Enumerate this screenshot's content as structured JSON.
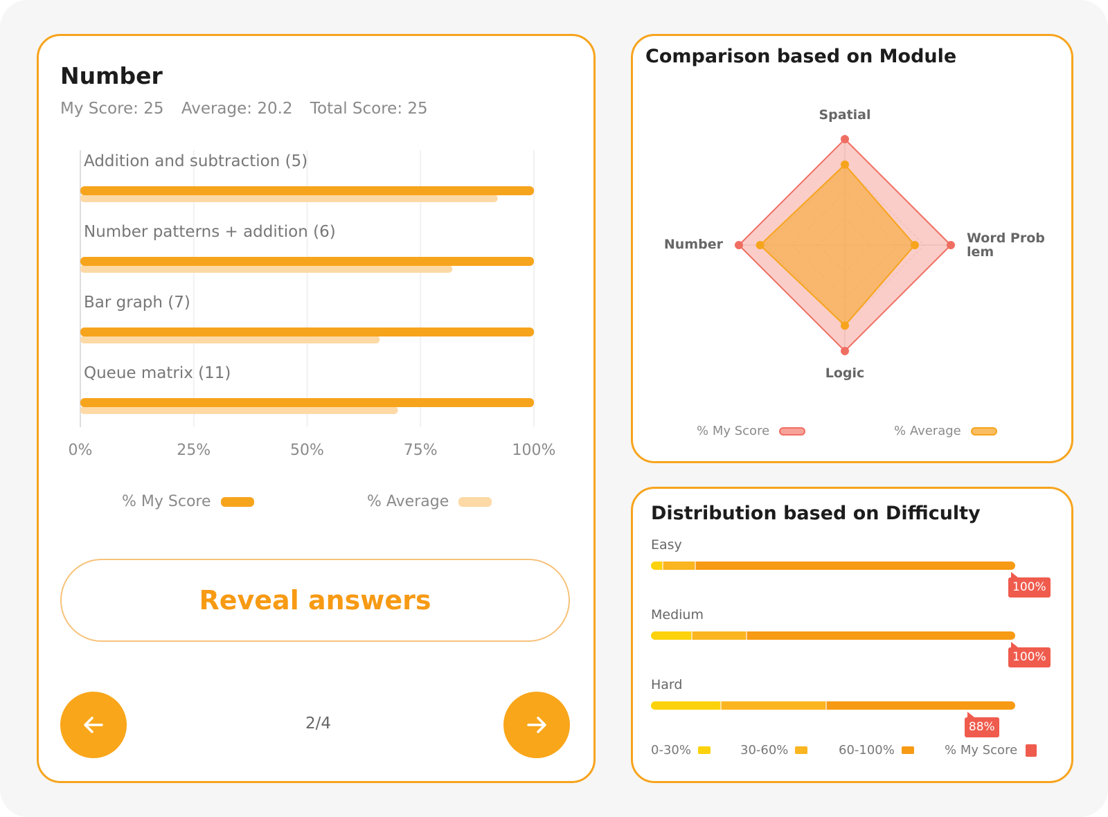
{
  "number_card": {
    "title": "Number",
    "my_score_text": "My Score: 25",
    "average_text": "Average: 20.2",
    "total_score_text": "Total Score: 25",
    "legend": {
      "my_score": "% My Score",
      "average": "% Average"
    },
    "reveal_label": "Reveal answers",
    "page_indicator": "2/4",
    "colors": {
      "my_score": "#f7a41d",
      "average": "#fdd9a6"
    }
  },
  "chart_data": [
    {
      "type": "bar",
      "orientation": "horizontal",
      "categories": [
        "Addition and subtraction (5)",
        "Number patterns + addition (6)",
        "Bar graph (7)",
        "Queue matrix (11)"
      ],
      "series": [
        {
          "name": "% My Score",
          "values": [
            100,
            100,
            100,
            100
          ]
        },
        {
          "name": "% Average",
          "values": [
            92,
            82,
            66,
            70
          ]
        }
      ],
      "xticks": [
        "0%",
        "25%",
        "50%",
        "75%",
        "100%"
      ],
      "xlim": [
        0,
        100
      ],
      "legend": "bottom"
    },
    {
      "type": "radar",
      "title": "Comparison based on Module",
      "categories": [
        "Spatial",
        "Word Prob lem",
        "Logic",
        "Number"
      ],
      "series": [
        {
          "name": "% My Score",
          "values": [
            100,
            100,
            100,
            100
          ]
        },
        {
          "name": "% Average",
          "values": [
            76,
            66,
            76,
            80
          ]
        }
      ],
      "rmax": 100,
      "legend": "bottom"
    },
    {
      "type": "bar",
      "orientation": "horizontal-stacked",
      "title": "Distribution based on Difficulty",
      "categories": [
        "Easy",
        "Medium",
        "Hard"
      ],
      "series": [
        {
          "name": "0-30%",
          "values": [
            3,
            11,
            19
          ]
        },
        {
          "name": "30-60%",
          "values": [
            9,
            15,
            29
          ]
        },
        {
          "name": "60-100%",
          "values": [
            88,
            74,
            52
          ]
        }
      ],
      "my_score": [
        100,
        100,
        88
      ],
      "my_score_labels": [
        "100%",
        "100%",
        "88%"
      ],
      "legend_my_score": "% My Score",
      "legend": "bottom"
    }
  ],
  "module_card": {
    "title": "Comparison based on Module",
    "legend": {
      "my_score": "% My Score",
      "average": "% Average"
    },
    "colors": {
      "my_score": "#f7a39a",
      "average": "#f9bd62"
    }
  },
  "difficulty_card": {
    "title": "Distribution based on Difficulty",
    "colors": {
      "low": "#fcd20c",
      "mid": "#fab520",
      "high": "#f79a14",
      "tag": "#ef5b4d"
    }
  }
}
